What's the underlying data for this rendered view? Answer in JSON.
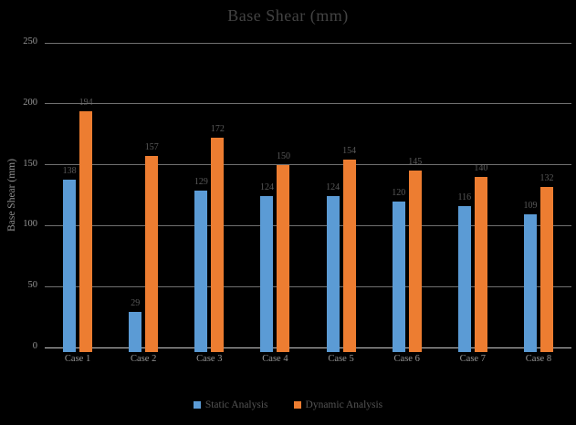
{
  "chart_data": {
    "type": "bar",
    "title": "Base Shear (mm)",
    "ylabel": "Base Shear (mm)",
    "xlabel": "",
    "categories": [
      "Case 1",
      "Case 2",
      "Case 3",
      "Case 4",
      "Case 5",
      "Case 6",
      "Case 7",
      "Case 8"
    ],
    "series": [
      {
        "name": "Static Analysis",
        "color": "#5B9BD5",
        "values": [
          138,
          29,
          129,
          124,
          124,
          120,
          116,
          109
        ]
      },
      {
        "name": "Dynamic Analysis",
        "color": "#ED7D31",
        "values": [
          194,
          157,
          172,
          150,
          154,
          145,
          140,
          132
        ]
      }
    ],
    "ylim": [
      0,
      250
    ],
    "y_ticks": [
      0,
      50,
      100,
      150,
      200,
      250
    ],
    "grid": true,
    "legend_position": "bottom",
    "data_labels": true,
    "colors": {
      "background": "#000000",
      "gridline": "#6f6f6f",
      "axis_line": "#c9c9c9",
      "title_text": "#434343",
      "tick_text": "#969696",
      "data_label_text": "#595959",
      "legend_text": "#545454"
    }
  }
}
